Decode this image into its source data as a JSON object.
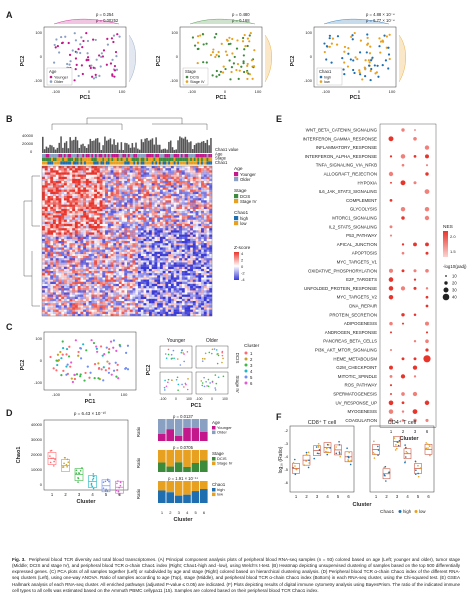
{
  "panels": {
    "A": {
      "letter": "A",
      "axis_x": "PC1",
      "axis_y": "PC2",
      "ticks_x": [
        "-100",
        "0",
        "100"
      ],
      "ticks_y": [
        "-100",
        "0",
        "100"
      ],
      "plots": [
        {
          "legend_title": "Age",
          "legend_items": [
            "Younger",
            "Older"
          ],
          "colors": [
            "#c2188b",
            "#8aa0c2"
          ],
          "p_top": "p = 0.254",
          "p_bottom": "p = 0.00252"
        },
        {
          "legend_title": "Stage",
          "legend_items": [
            "DCIS",
            "Stage IV"
          ],
          "colors": [
            "#3c8a3c",
            "#e8a020"
          ],
          "p_top": "p = 0.480",
          "p_bottom": "p = 0.168"
        },
        {
          "legend_title": "Chao1",
          "legend_items": [
            "high",
            "low"
          ],
          "colors": [
            "#1f6fb0",
            "#e8a020"
          ],
          "p_top": "p = 4.88 × 10⁻⁴",
          "p_bottom": "p = 6.77 × 10⁻⁴"
        }
      ]
    },
    "B": {
      "letter": "B",
      "bar_ticks": [
        "40000",
        "20000",
        "0"
      ],
      "track_labels": [
        "Chao1 value",
        "Age",
        "Stage",
        "Chao1"
      ],
      "legends": [
        {
          "title": "Age",
          "items": [
            "Younger",
            "Older"
          ],
          "colors": [
            "#c2188b",
            "#8aa0c2"
          ]
        },
        {
          "title": "Stage",
          "items": [
            "DCIS",
            "Stage IV"
          ],
          "colors": [
            "#3c8a3c",
            "#e8a020"
          ]
        },
        {
          "title": "Chao1",
          "items": [
            "high",
            "low"
          ],
          "colors": [
            "#1f6fb0",
            "#e8a020"
          ]
        }
      ],
      "zscore_title": "Z-score",
      "zscore_ticks": [
        "4",
        "2",
        "0",
        "-2",
        "-4"
      ]
    },
    "C": {
      "letter": "C",
      "axis_x": "PC1",
      "axis_y": "PC2",
      "ticks_x": [
        "-100",
        "0",
        "100"
      ],
      "ticks_y": [
        "100",
        "0",
        "-100"
      ],
      "small_ticks_x": [
        "-100",
        "0",
        "100"
      ],
      "col_titles": [
        "Younger",
        "Older"
      ],
      "row_titles": [
        "DCIS",
        "Stage IV"
      ],
      "legend_title": "Cluster",
      "legend_items": [
        "1",
        "2",
        "3",
        "4",
        "5",
        "6"
      ]
    },
    "D": {
      "letter": "D",
      "p_main": "p = 6.43 × 10⁻¹⁰",
      "axis_y": "Chao1",
      "axis_x": "Cluster",
      "ticks_y": [
        "40000",
        "30000",
        "20000",
        "10000",
        "0"
      ],
      "clusters": [
        "1",
        "2",
        "3",
        "4",
        "5",
        "6"
      ],
      "bars": [
        {
          "p": "p = 0.0137",
          "legend_title": "Age",
          "legend_items": [
            "Younger",
            "Older"
          ],
          "colors": [
            "#c2188b",
            "#8aa0c2"
          ]
        },
        {
          "p": "p = 0.0705",
          "legend_title": "Stage",
          "legend_items": [
            "DCIS",
            "Stage IV"
          ],
          "colors": [
            "#3c8a3c",
            "#e8a020"
          ]
        },
        {
          "p": "p = 1.91 × 10⁻¹¹",
          "legend_title": "Chao1",
          "legend_items": [
            "high",
            "low"
          ],
          "colors": [
            "#1f6fb0",
            "#e8a020"
          ]
        }
      ],
      "ratio_label": "Ratio",
      "ratio_ticks": [
        "1.00",
        "0.75",
        "0.50",
        "0.25",
        "0.00"
      ]
    },
    "E": {
      "letter": "E",
      "axis_x": "Cluster",
      "clusters": [
        "1",
        "2",
        "3",
        "6"
      ],
      "pathways": [
        "WNT_BETA_CATENIN_SIGNALING",
        "INTERFERON_GAMMA_RESPONSE",
        "INFLAMMATORY_RESPONSE",
        "INTERFERON_ALPHA_RESPONSE",
        "TNFA_SIGNALING_VIA_NFKB",
        "ALLOGRAFT_REJECTION",
        "HYPOXIA",
        "IL6_JAK_STAT3_SIGNALING",
        "COMPLEMENT",
        "GLYCOLYSIS",
        "MTORC1_SIGNALING",
        "IL2_STAT5_SIGNALING",
        "P53_PATHWAY",
        "APICAL_JUNCTION",
        "APOPTOSIS",
        "MYC_TARGETS_V1",
        "OXIDATIVE_PHOSPHORYLATION",
        "E2F_TARGETS",
        "UNFOLDED_PROTEIN_RESPONSE",
        "MYC_TARGETS_V2",
        "DNA_REPAIR",
        "PROTEIN_SECRETION",
        "ADIPOGENESIS",
        "ANDROGEN_RESPONSE",
        "PANCREAS_BETA_CELLS",
        "PI3K_AKT_MTOR_SIGNALING",
        "HEME_METABOLISM",
        "G2M_CHECKPOINT",
        "MITOTIC_SPINDLE",
        "ROS_PATHWAY",
        "SPERMATOGENESIS",
        "UV_RESPONSE_UP",
        "MYOGENESIS",
        "COAGULATION"
      ],
      "nes_title": "NES",
      "nes_ticks": [
        "2.0",
        "1.5"
      ],
      "size_title": "-log10(padj)",
      "size_ticks": [
        "10",
        "20",
        "30",
        "40"
      ]
    },
    "F": {
      "letter": "F",
      "titles": [
        "CD8⁺ T cell",
        "CD4⁺ T cell"
      ],
      "axis_y": "log₁₀ (Ratio)",
      "axis_x": "Cluster",
      "ticks_y": [
        "-2",
        "-3",
        "-4",
        "-5",
        "-6"
      ],
      "clusters": [
        "1",
        "2",
        "3",
        "4",
        "5",
        "6"
      ],
      "legend_title": "Chao1",
      "legend_items": [
        "high",
        "low"
      ]
    }
  },
  "caption": {
    "fig": "Fig. 3.",
    "title": "Peripheral blood TCR diversity and total blood transcriptomes.",
    "body": "(A) Principal component analysis plots of peripheral blood RNA-seq samples (n = 93) colored based on age (Left; younger and older), tumor stage (Middle; DCIS and stage IV), and peripheral blood TCR α-chain Chao1 index (Right; Chao1-high and -low), using Welch's t-test. (B) Heatmap depicting unsupervised clustering of samples based on the top 500 differentially expressed genes. (C) PCA plots of all samples together (Left) or subdivided by age and stage (Right) colored based on hierarchical clustering analysis. (D) Peripheral blood TCR α-chain Chao1 index of the different RNA-seq clusters (Left), using one-way ANOVA. Ratio of samples according to age (Top), stage (Middle), and peripheral blood TCR α-chain Chao1 index (Bottom) in each RNA-seq cluster, using the Chi-squared test. (E) GSEA Hallmark analysis of each RNA-seq cluster. All enriched pathways (adjusted P-value ≤ 0.05) are indicated. (F) Plots depicting results of digital immune cytometry analysis using BayesPrism. The ratio of the indicated immune cell types to all cells was estimated based on the Ammuth PBMC cellypa11 (15). Samples are colored based on their peripheral blood TCR Chao1 index."
  },
  "colors": {
    "cluster": [
      "#ff6a70",
      "#c8a025",
      "#3fb84a",
      "#1fb8c6",
      "#6f8ef0",
      "#e45ad6"
    ],
    "heat_hi": "#e8352c",
    "heat_lo": "#3a3ad6"
  }
}
